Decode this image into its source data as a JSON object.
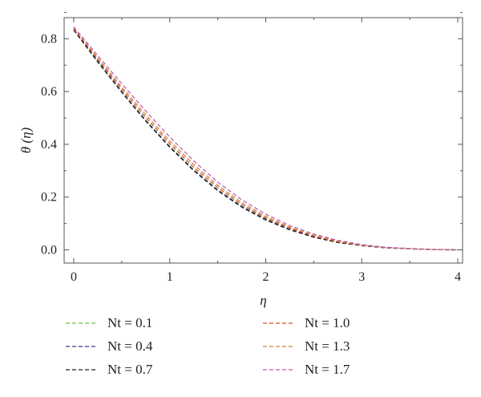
{
  "chart_data": {
    "type": "line",
    "title": "",
    "xlabel": "η",
    "ylabel": "θ (η)",
    "xlim": [
      -0.1,
      4.05
    ],
    "ylim": [
      -0.05,
      0.88
    ],
    "x_ticks": [
      0,
      1,
      2,
      3,
      4
    ],
    "x_tick_labels": [
      "0",
      "1",
      "2",
      "3",
      "4"
    ],
    "y_ticks": [
      0.0,
      0.2,
      0.4,
      0.6,
      0.8
    ],
    "y_tick_labels": [
      "0.0",
      "0.2",
      "0.4",
      "0.6",
      "0.8"
    ],
    "grid": false,
    "legend_position": "bottom",
    "x": [
      0,
      0.25,
      0.5,
      0.75,
      1.0,
      1.25,
      1.5,
      1.75,
      2.0,
      2.25,
      2.5,
      2.75,
      3.0,
      3.25,
      3.5,
      3.75,
      4.0
    ],
    "series": [
      {
        "name": "Nt = 0.1",
        "color": "#6abf4b",
        "dash": "dashed",
        "values": [
          0.835,
          0.715,
          0.601,
          0.492,
          0.393,
          0.304,
          0.228,
          0.166,
          0.117,
          0.078,
          0.049,
          0.029,
          0.016,
          0.008,
          0.004,
          0.001,
          0.0
        ]
      },
      {
        "name": "Nt = 0.4",
        "color": "#3b3b8f",
        "dash": "dashed",
        "values": [
          0.834,
          0.714,
          0.599,
          0.49,
          0.391,
          0.302,
          0.226,
          0.164,
          0.115,
          0.077,
          0.048,
          0.029,
          0.016,
          0.008,
          0.004,
          0.001,
          0.0
        ]
      },
      {
        "name": "Nt = 0.7",
        "color": "#222222",
        "dash": "dashed",
        "values": [
          0.833,
          0.712,
          0.597,
          0.488,
          0.389,
          0.3,
          0.224,
          0.162,
          0.113,
          0.076,
          0.048,
          0.028,
          0.016,
          0.008,
          0.004,
          0.001,
          0.0
        ]
      },
      {
        "name": "Nt = 1.0",
        "color": "#d94a2b",
        "dash": "dashed",
        "values": [
          0.838,
          0.721,
          0.609,
          0.502,
          0.403,
          0.313,
          0.236,
          0.172,
          0.121,
          0.082,
          0.052,
          0.031,
          0.017,
          0.009,
          0.004,
          0.001,
          0.0
        ]
      },
      {
        "name": "Nt = 1.3",
        "color": "#c8843a",
        "dash": "dashed",
        "values": [
          0.841,
          0.727,
          0.617,
          0.512,
          0.413,
          0.323,
          0.245,
          0.179,
          0.127,
          0.086,
          0.055,
          0.033,
          0.018,
          0.009,
          0.004,
          0.001,
          0.0
        ]
      },
      {
        "name": "Nt = 1.7",
        "color": "#c05ab4",
        "dash": "dashed",
        "values": [
          0.845,
          0.736,
          0.63,
          0.526,
          0.428,
          0.337,
          0.257,
          0.19,
          0.135,
          0.092,
          0.06,
          0.036,
          0.02,
          0.01,
          0.005,
          0.002,
          0.0
        ]
      }
    ],
    "legend_order": [
      0,
      3,
      1,
      4,
      2,
      5
    ]
  }
}
